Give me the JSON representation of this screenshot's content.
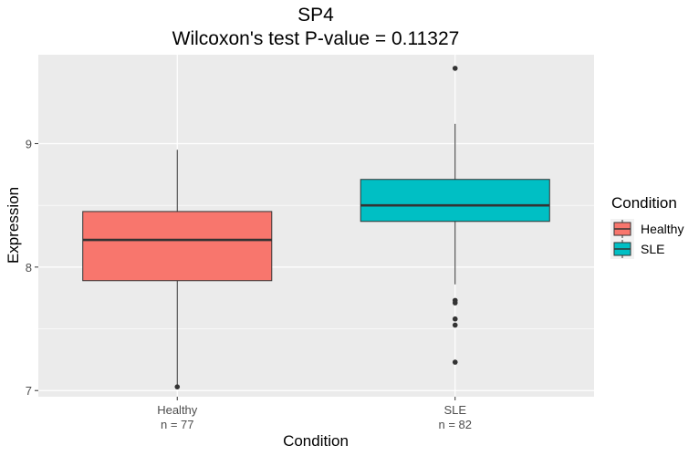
{
  "chart_data": {
    "type": "box",
    "title": "SP4",
    "subtitle": "Wilcoxon's test P-value = 0.11327",
    "xlabel": "Condition",
    "ylabel": "Expression",
    "ylim": [
      6.95,
      9.72
    ],
    "yticks": [
      7,
      8,
      9
    ],
    "grid": true,
    "categories": [
      "Healthy",
      "SLE"
    ],
    "category_counts": [
      "n = 77",
      "n = 82"
    ],
    "colors": {
      "Healthy": "#F8766D",
      "SLE": "#00BFC4",
      "panel": "#EBEBEB",
      "grid": "#FFFFFF",
      "box_line": "#333333"
    },
    "boxes": [
      {
        "name": "Healthy",
        "lower_whisker": 7.03,
        "q1": 7.89,
        "median": 8.22,
        "q3": 8.45,
        "upper_whisker": 8.95,
        "outliers": [
          7.03
        ]
      },
      {
        "name": "SLE",
        "lower_whisker": 7.86,
        "q1": 8.37,
        "median": 8.5,
        "q3": 8.71,
        "upper_whisker": 9.16,
        "outliers": [
          9.61,
          7.73,
          7.71,
          7.58,
          7.53,
          7.23
        ]
      }
    ],
    "legend": {
      "title": "Condition",
      "placement": "right",
      "items": [
        "Healthy",
        "SLE"
      ]
    }
  }
}
